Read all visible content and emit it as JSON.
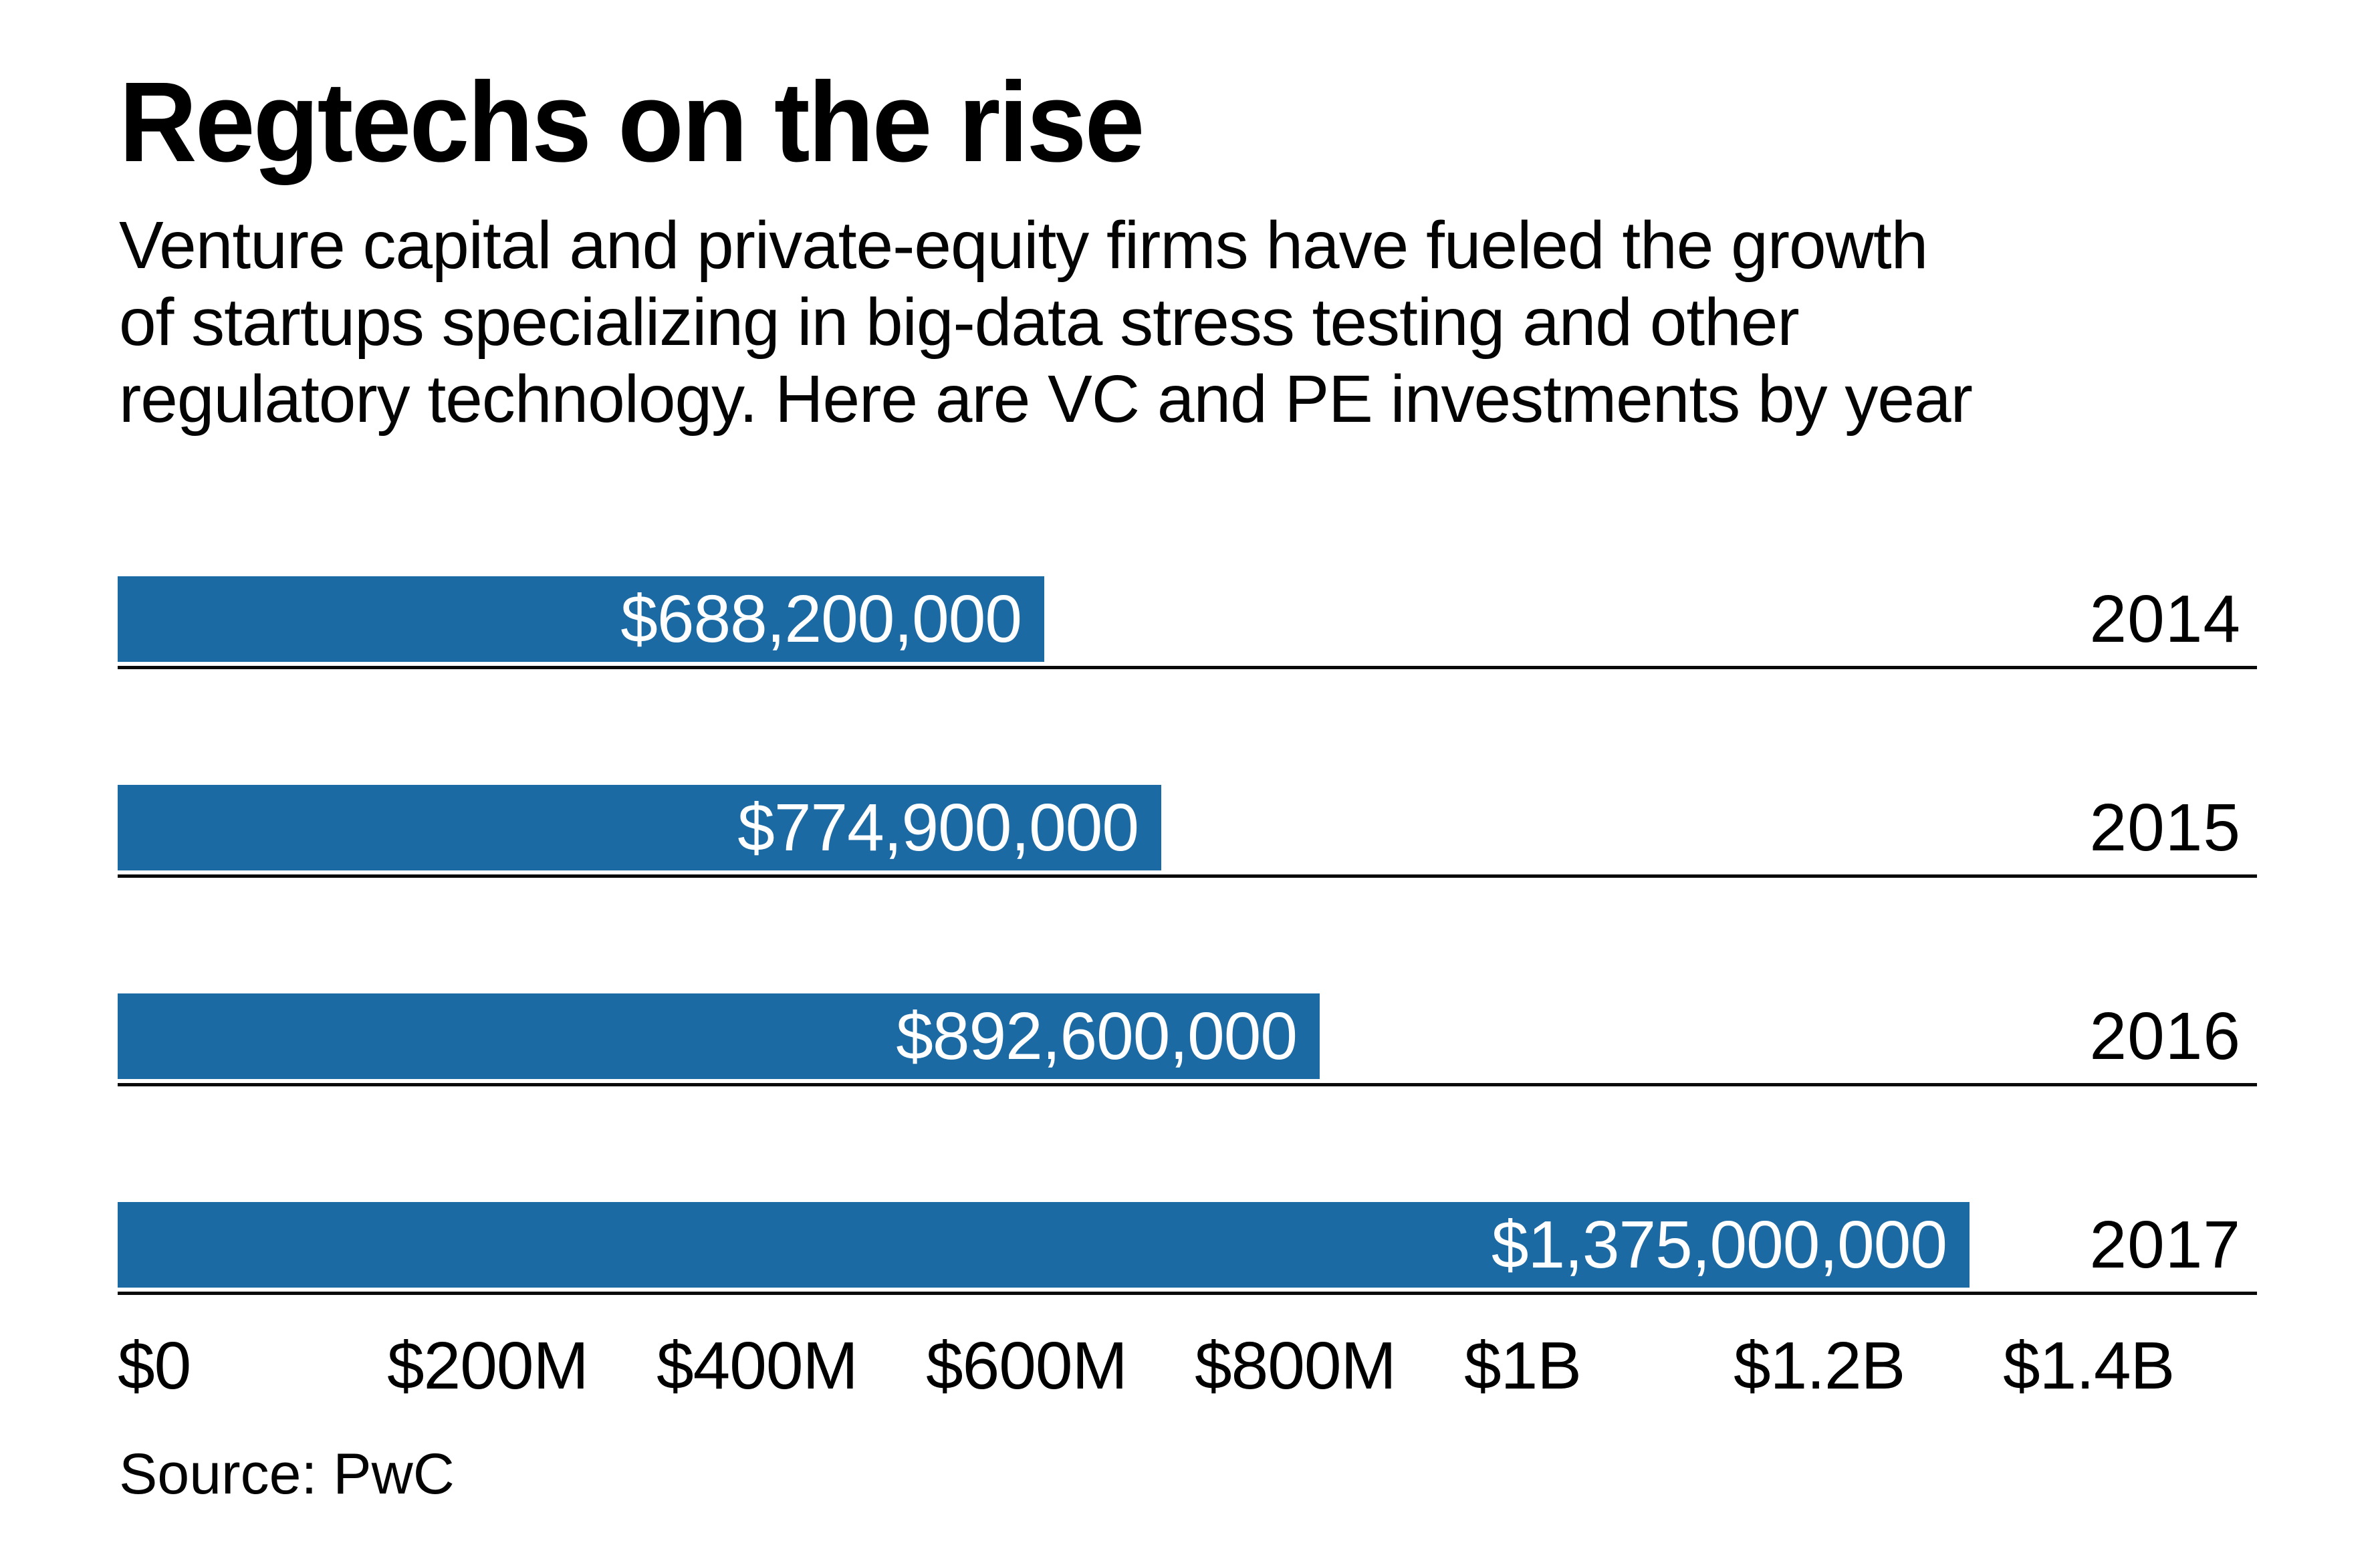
{
  "header": {
    "title": "Regtechs on the rise",
    "subtitle_lines": [
      "Venture capital and private-equity firms have fueled the growth",
      "of startups specializing in big-data stress testing and other",
      "regulatory technology. Here are VC and PE investments by year"
    ]
  },
  "chart_data": {
    "type": "bar",
    "orientation": "horizontal",
    "title": "Regtechs on the rise",
    "categories": [
      "2014",
      "2015",
      "2016",
      "2017"
    ],
    "values": [
      688200000,
      774900000,
      892600000,
      1375000000
    ],
    "bar_labels": [
      "$688,200,000",
      "$774,900,000",
      "$892,600,000",
      "$1,375,000,000"
    ],
    "x_tick_labels": [
      "$0",
      "$200M",
      "$400M",
      "$600M",
      "$800M",
      "$1B",
      "$1.2B",
      "$1.4B"
    ],
    "x_tick_values": [
      0,
      200000000,
      400000000,
      600000000,
      800000000,
      1000000000,
      1200000000,
      1400000000
    ],
    "xlim": [
      0,
      1400000000
    ],
    "bar_color": "#1c6aa3",
    "bar_label_color": "#ffffff",
    "axis_text_color": "#000000",
    "baseline_color": "#0a0a0a",
    "grid": "off",
    "legend": "none",
    "value_label_position": "inside-right",
    "category_label_position": "right"
  },
  "footer": {
    "source": "Source: PwC"
  }
}
